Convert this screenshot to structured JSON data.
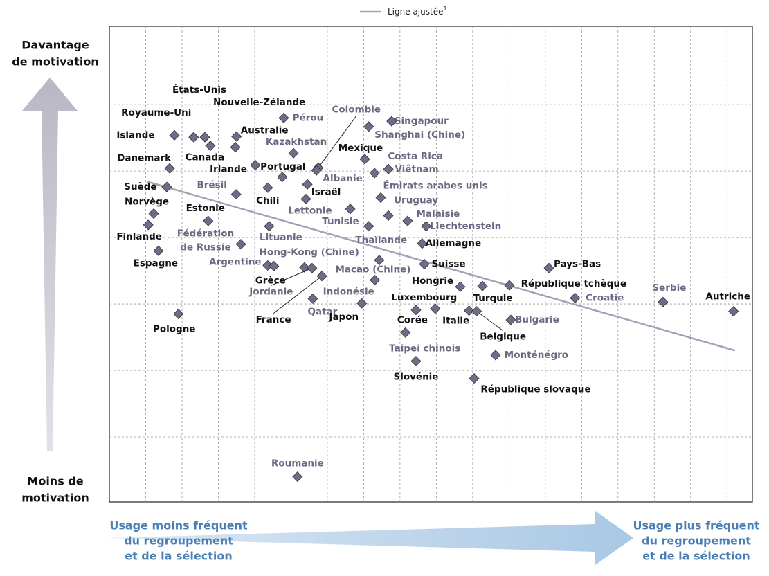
{
  "chart_data": {
    "type": "scatter",
    "legend": {
      "label": "Ligne ajustée",
      "superscript": "1"
    },
    "annotations": {
      "y_high": [
        "Davantage",
        "de motivation"
      ],
      "y_low": [
        "Moins de",
        "motivation"
      ],
      "x_low": [
        "Usage moins fréquent",
        "du regroupement",
        "et de la sélection"
      ],
      "x_high": [
        "Usage plus fréquent",
        "du regroupement",
        "et de la sélection"
      ]
    },
    "labels": [
      "Islande",
      "Royaume-Uni",
      "États-Unis",
      "Canada",
      "Nouvelle-Zélande",
      "Australie",
      "Pérou",
      "Kazakhstan",
      "Colombie",
      "Albanie",
      "Danemark",
      "Irlande",
      "Portugal",
      "Israël",
      "Lettonie",
      "Brésil",
      "Chili",
      "Suède",
      "Norvège",
      "Finlande",
      "Espagne",
      "Estonie",
      "Fédération de Russie",
      "Lituanie",
      "Mexique",
      "Singapour",
      "Shanghai (Chine)",
      "Costa Rica",
      "Viêtnam",
      "Émirats arabes unis",
      "Uruguay",
      "Malaisie",
      "Liechtenstein",
      "Tunisie",
      "Thaïlande",
      "Allemagne",
      "Hong-Kong (Chine)",
      "Macao (Chine)",
      "Suisse",
      "Argentine",
      "Grèce",
      "Jordanie",
      "France",
      "Indonésie",
      "Qatar",
      "Japon",
      "Hongrie",
      "Luxembourg",
      "Corée",
      "Taipei chinois",
      "Slovénie",
      "Turquie",
      "Italie",
      "Belgique",
      "République tchèque",
      "Bulgarie",
      "Monténégro",
      "République slovaque",
      "Pays-Bas",
      "Croatie",
      "Serbie",
      "Autriche",
      "Pologne",
      "Roumanie"
    ],
    "x": [
      1.79,
      2.32,
      2.63,
      2.78,
      3.5,
      3.47,
      4.8,
      5.07,
      5.75,
      5.7,
      1.66,
      4.02,
      4.76,
      5.45,
      5.41,
      3.49,
      4.36,
      1.58,
      1.22,
      1.07,
      1.35,
      2.72,
      3.62,
      4.4,
      7.03,
      7.77,
      7.14,
      7.3,
      7.68,
      7.47,
      7.68,
      8.21,
      8.72,
      6.63,
      7.14,
      8.61,
      5.37,
      7.43,
      8.67,
      4.36,
      4.53,
      5.58,
      5.85,
      7.31,
      5.6,
      6.95,
      9.66,
      8.97,
      8.44,
      8.15,
      8.44,
      10.27,
      9.9,
      10.11,
      11.01,
      11.05,
      10.63,
      10.04,
      12.1,
      12.82,
      15.24,
      17.18,
      1.9,
      5.18
    ],
    "values": [
      5.54,
      5.51,
      5.51,
      5.38,
      5.52,
      5.36,
      5.8,
      5.27,
      5.05,
      5.01,
      5.04,
      5.09,
      4.91,
      4.8,
      4.58,
      4.65,
      4.75,
      4.76,
      4.36,
      4.19,
      3.8,
      4.25,
      3.9,
      4.17,
      5.18,
      5.75,
      5.67,
      4.97,
      5.03,
      4.6,
      4.33,
      4.25,
      4.17,
      4.43,
      4.17,
      3.91,
      3.55,
      3.66,
      3.6,
      3.58,
      3.57,
      3.54,
      3.42,
      3.36,
      3.08,
      3.01,
      3.26,
      2.93,
      2.91,
      2.57,
      2.14,
      3.27,
      2.9,
      2.89,
      3.28,
      2.76,
      2.23,
      1.88,
      3.54,
      3.09,
      3.03,
      2.89,
      2.85,
      0.4
    ],
    "label_colors": [
      "#111",
      "#111",
      "#111",
      "#111",
      "#111",
      "#111",
      "#6b6882",
      "#6b6882",
      "#6b6882",
      "#6b6882",
      "#111",
      "#111",
      "#111",
      "#111",
      "#6b6882",
      "#6b6882",
      "#111",
      "#111",
      "#111",
      "#111",
      "#111",
      "#111",
      "#6b6882",
      "#6b6882",
      "#111",
      "#6b6882",
      "#6b6882",
      "#6b6882",
      "#6b6882",
      "#6b6882",
      "#6b6882",
      "#6b6882",
      "#6b6882",
      "#6b6882",
      "#6b6882",
      "#111",
      "#6b6882",
      "#6b6882",
      "#111",
      "#6b6882",
      "#111",
      "#6b6882",
      "#111",
      "#6b6882",
      "#6b6882",
      "#111",
      "#111",
      "#111",
      "#111",
      "#6b6882",
      "#111",
      "#111",
      "#111",
      "#111",
      "#111",
      "#6b6882",
      "#6b6882",
      "#111",
      "#111",
      "#6b6882",
      "#6b6882",
      "#111",
      "#111",
      "#6b6882"
    ],
    "marker_color": "#6e6c88",
    "fit_line": {
      "color": "#a3a1b5",
      "x": [
        1.05,
        17.22
      ],
      "values": [
        4.84,
        2.3
      ]
    },
    "xlim": [
      0,
      17.7
    ],
    "ylim": [
      0,
      7.2
    ],
    "xticks": [
      1,
      2,
      3,
      4,
      5,
      6,
      7,
      8,
      9,
      10,
      11,
      12,
      13,
      14,
      15,
      16,
      17
    ],
    "yticks": [
      1,
      2,
      3,
      4,
      5,
      6
    ],
    "grid": true
  }
}
